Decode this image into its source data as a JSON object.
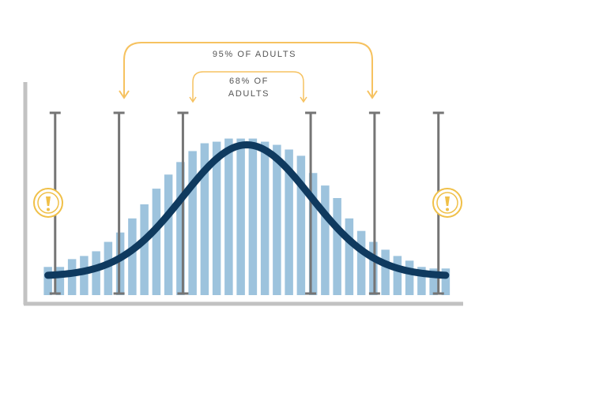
{
  "chart_data": {
    "type": "bar",
    "title": "",
    "xlabel": "",
    "ylabel": "",
    "grid": false,
    "legend": "none",
    "values": [
      18,
      18,
      23,
      25,
      28,
      34,
      40,
      49,
      58,
      68,
      77,
      85,
      92,
      97,
      98,
      100,
      100,
      100,
      98,
      96,
      93,
      89,
      78,
      70,
      62,
      49,
      41,
      34,
      29,
      25,
      22,
      18,
      17,
      17
    ],
    "ylim": [
      0,
      125
    ],
    "curve": {
      "type": "normal",
      "mean": 16.5,
      "sd": 5.3,
      "baseline": 12,
      "peak": 96
    },
    "intervals": [
      {
        "label": "68% OF ADULTS",
        "from_sd": -1,
        "to_sd": 1
      },
      {
        "label": "95% OF ADULTS",
        "from_sd": -2,
        "to_sd": 2
      }
    ],
    "sd_markers": [
      -3,
      -2,
      -1,
      1,
      2,
      3
    ],
    "warning_markers": [
      "left-tail",
      "right-tail"
    ],
    "colors": {
      "bars": "#9dc3dd",
      "curve": "#0f3a5f",
      "markers": "#757575",
      "annotation": "#f6c260",
      "axis": "#c2c2c2",
      "warning": "#f0c048"
    }
  },
  "annotations": {
    "outer_label": "95% OF ADULTS",
    "inner_label_line1": "68% OF",
    "inner_label_line2": "ADULTS"
  },
  "icons": {
    "left": "warning-icon",
    "right": "warning-icon"
  }
}
